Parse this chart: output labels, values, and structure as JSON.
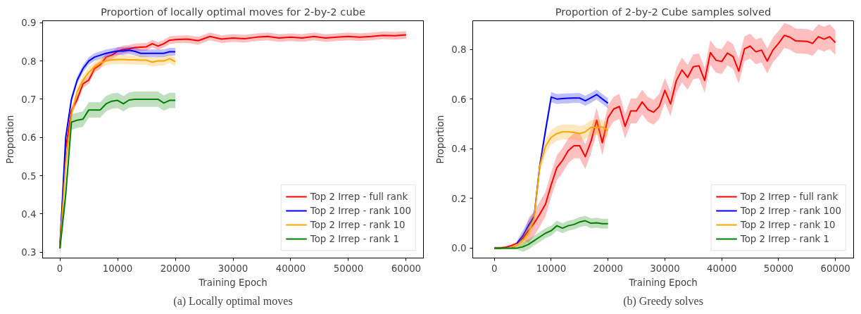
{
  "chart_data": [
    {
      "type": "line",
      "title": "Proportion of locally optimal moves for 2-by-2 cube",
      "xlabel": "Training Epoch",
      "ylabel": "Proportion",
      "annotations": [
        "(a) Locally optimal moves"
      ],
      "xlim": [
        -3000,
        63000
      ],
      "ylim": [
        0.285,
        0.905
      ],
      "xticks": [
        0,
        10000,
        20000,
        30000,
        40000,
        50000,
        60000
      ],
      "yticks": [
        0.3,
        0.4,
        0.5,
        0.6,
        0.7,
        0.8,
        0.9
      ],
      "grid": false,
      "legend": "bottom right",
      "series": [
        {
          "name": "Top 2 Irrep - full rank",
          "color": "#ff0000",
          "x": [
            0,
            1000,
            2000,
            3000,
            4000,
            5000,
            6000,
            7000,
            8000,
            9000,
            10000,
            11000,
            12000,
            13000,
            14000,
            15000,
            16000,
            17000,
            18000,
            19000,
            20000,
            22000,
            24000,
            26000,
            28000,
            30000,
            32000,
            34000,
            36000,
            38000,
            40000,
            42000,
            44000,
            46000,
            48000,
            50000,
            52000,
            54000,
            56000,
            58000,
            60000
          ],
          "values": [
            0.32,
            0.57,
            0.67,
            0.7,
            0.74,
            0.75,
            0.78,
            0.79,
            0.81,
            0.815,
            0.825,
            0.83,
            0.832,
            0.835,
            0.836,
            0.837,
            0.845,
            0.839,
            0.845,
            0.854,
            0.856,
            0.857,
            0.853,
            0.864,
            0.857,
            0.86,
            0.858,
            0.862,
            0.864,
            0.86,
            0.862,
            0.86,
            0.864,
            0.86,
            0.862,
            0.864,
            0.862,
            0.864,
            0.867,
            0.866,
            0.868
          ],
          "lower": [
            0.31,
            0.56,
            0.66,
            0.69,
            0.73,
            0.74,
            0.77,
            0.78,
            0.8,
            0.805,
            0.815,
            0.82,
            0.822,
            0.825,
            0.826,
            0.827,
            0.835,
            0.829,
            0.835,
            0.844,
            0.846,
            0.847,
            0.843,
            0.854,
            0.847,
            0.85,
            0.848,
            0.852,
            0.854,
            0.85,
            0.852,
            0.85,
            0.854,
            0.85,
            0.852,
            0.854,
            0.852,
            0.854,
            0.857,
            0.856,
            0.858
          ],
          "upper": [
            0.33,
            0.58,
            0.68,
            0.71,
            0.75,
            0.76,
            0.79,
            0.8,
            0.82,
            0.825,
            0.835,
            0.84,
            0.842,
            0.845,
            0.846,
            0.847,
            0.855,
            0.849,
            0.855,
            0.864,
            0.866,
            0.867,
            0.863,
            0.874,
            0.867,
            0.87,
            0.868,
            0.872,
            0.874,
            0.87,
            0.872,
            0.87,
            0.874,
            0.87,
            0.872,
            0.874,
            0.872,
            0.874,
            0.877,
            0.876,
            0.878
          ]
        },
        {
          "name": "Top 2 Irrep - rank 100",
          "color": "#0000ff",
          "x": [
            0,
            1000,
            2000,
            3000,
            4000,
            5000,
            6000,
            7000,
            8000,
            9000,
            10000,
            11000,
            12000,
            13000,
            14000,
            15000,
            16000,
            17000,
            18000,
            19000,
            20000
          ],
          "values": [
            0.31,
            0.6,
            0.7,
            0.75,
            0.78,
            0.8,
            0.81,
            0.815,
            0.82,
            0.823,
            0.826,
            0.826,
            0.828,
            0.825,
            0.82,
            0.82,
            0.82,
            0.82,
            0.82,
            0.824,
            0.824
          ],
          "lower": [
            0.3,
            0.59,
            0.69,
            0.74,
            0.77,
            0.79,
            0.8,
            0.805,
            0.81,
            0.813,
            0.816,
            0.816,
            0.818,
            0.815,
            0.81,
            0.81,
            0.81,
            0.81,
            0.81,
            0.814,
            0.814
          ],
          "upper": [
            0.32,
            0.61,
            0.71,
            0.76,
            0.79,
            0.81,
            0.82,
            0.825,
            0.83,
            0.833,
            0.836,
            0.836,
            0.838,
            0.835,
            0.83,
            0.83,
            0.83,
            0.83,
            0.83,
            0.834,
            0.834
          ]
        },
        {
          "name": "Top 2 Irrep - rank 10",
          "color": "#ffa500",
          "x": [
            0,
            1000,
            2000,
            3000,
            4000,
            5000,
            6000,
            7000,
            8000,
            9000,
            10000,
            11000,
            12000,
            13000,
            14000,
            15000,
            16000,
            17000,
            18000,
            19000,
            20000
          ],
          "values": [
            0.31,
            0.53,
            0.66,
            0.72,
            0.75,
            0.77,
            0.785,
            0.795,
            0.8,
            0.803,
            0.804,
            0.804,
            0.803,
            0.803,
            0.802,
            0.802,
            0.797,
            0.8,
            0.8,
            0.806,
            0.798
          ],
          "lower": [
            0.298,
            0.518,
            0.648,
            0.708,
            0.738,
            0.758,
            0.773,
            0.783,
            0.788,
            0.791,
            0.792,
            0.792,
            0.791,
            0.791,
            0.79,
            0.79,
            0.785,
            0.788,
            0.788,
            0.794,
            0.786
          ],
          "upper": [
            0.322,
            0.542,
            0.672,
            0.732,
            0.762,
            0.782,
            0.797,
            0.807,
            0.812,
            0.815,
            0.816,
            0.816,
            0.815,
            0.815,
            0.814,
            0.814,
            0.809,
            0.812,
            0.812,
            0.818,
            0.81
          ]
        },
        {
          "name": "Top 2 Irrep - rank 1",
          "color": "#008000",
          "x": [
            0,
            1000,
            2000,
            3000,
            4000,
            5000,
            6000,
            7000,
            8000,
            9000,
            10000,
            11000,
            12000,
            13000,
            14000,
            15000,
            16000,
            17000,
            18000,
            19000,
            20000
          ],
          "values": [
            0.31,
            0.45,
            0.64,
            0.645,
            0.648,
            0.672,
            0.672,
            0.672,
            0.688,
            0.695,
            0.697,
            0.688,
            0.698,
            0.7,
            0.7,
            0.7,
            0.7,
            0.7,
            0.69,
            0.697,
            0.697
          ],
          "lower": [
            0.29,
            0.43,
            0.62,
            0.625,
            0.628,
            0.652,
            0.652,
            0.652,
            0.668,
            0.675,
            0.677,
            0.668,
            0.678,
            0.68,
            0.68,
            0.68,
            0.68,
            0.68,
            0.67,
            0.677,
            0.677
          ],
          "upper": [
            0.33,
            0.47,
            0.66,
            0.665,
            0.668,
            0.692,
            0.692,
            0.692,
            0.708,
            0.715,
            0.717,
            0.708,
            0.718,
            0.72,
            0.72,
            0.72,
            0.72,
            0.72,
            0.71,
            0.717,
            0.717
          ]
        }
      ]
    },
    {
      "type": "line",
      "title": "Proportion of 2-by-2 Cube samples solved",
      "xlabel": "Training Epoch",
      "ylabel": "Proportion",
      "annotations": [
        "(b) Greedy solves"
      ],
      "xlim": [
        -3800,
        63200
      ],
      "ylim": [
        -0.04,
        0.915
      ],
      "xticks": [
        0,
        10000,
        20000,
        30000,
        40000,
        50000,
        60000
      ],
      "yticks": [
        {
          "value": 0,
          "label": "0.0"
        },
        0.2,
        0.4,
        0.6,
        0.8
      ],
      "grid": false,
      "legend": "bottom right",
      "series": [
        {
          "name": "Top 2 Irrep - full rank",
          "color": "#ff0000",
          "x": [
            0,
            1000,
            2000,
            3000,
            4000,
            5000,
            6000,
            7000,
            8000,
            9000,
            10000,
            11000,
            12000,
            13000,
            14000,
            15000,
            16000,
            17000,
            18000,
            19000,
            20000,
            21000,
            22000,
            23000,
            24000,
            25000,
            26000,
            27000,
            28000,
            29000,
            30000,
            31000,
            32000,
            33000,
            34000,
            35000,
            36000,
            37000,
            38000,
            39000,
            40000,
            41000,
            42000,
            43000,
            44000,
            45000,
            46000,
            47000,
            48000,
            49000,
            50000,
            51000,
            52000,
            53000,
            55000,
            56000,
            57000,
            58000,
            59000,
            60000
          ],
          "values": [
            0,
            0,
            0.003,
            0.01,
            0.02,
            0.04,
            0.07,
            0.1,
            0.137,
            0.177,
            0.255,
            0.324,
            0.353,
            0.392,
            0.412,
            0.412,
            0.368,
            0.43,
            0.515,
            0.424,
            0.525,
            0.56,
            0.57,
            0.49,
            0.552,
            0.552,
            0.588,
            0.558,
            0.547,
            0.57,
            0.635,
            0.58,
            0.673,
            0.717,
            0.687,
            0.73,
            0.734,
            0.675,
            0.787,
            0.756,
            0.751,
            0.785,
            0.771,
            0.712,
            0.802,
            0.813,
            0.79,
            0.797,
            0.753,
            0.797,
            0.824,
            0.856,
            0.849,
            0.834,
            0.832,
            0.824,
            0.851,
            0.841,
            0.851,
            0.827
          ],
          "lower": [
            -0.005,
            -0.005,
            -0.002,
            0.005,
            0.015,
            0.035,
            0.02,
            0.05,
            0.087,
            0.127,
            0.205,
            0.274,
            0.303,
            0.342,
            0.362,
            0.362,
            0.318,
            0.38,
            0.465,
            0.374,
            0.475,
            0.51,
            0.52,
            0.44,
            0.502,
            0.502,
            0.538,
            0.508,
            0.497,
            0.52,
            0.585,
            0.53,
            0.623,
            0.667,
            0.637,
            0.68,
            0.684,
            0.625,
            0.737,
            0.706,
            0.701,
            0.735,
            0.721,
            0.662,
            0.752,
            0.763,
            0.74,
            0.747,
            0.703,
            0.747,
            0.774,
            0.806,
            0.799,
            0.784,
            0.782,
            0.774,
            0.801,
            0.791,
            0.801,
            0.777
          ],
          "upper": [
            0.005,
            0.005,
            0.008,
            0.015,
            0.025,
            0.045,
            0.12,
            0.15,
            0.187,
            0.227,
            0.305,
            0.374,
            0.403,
            0.442,
            0.462,
            0.462,
            0.418,
            0.48,
            0.565,
            0.474,
            0.575,
            0.61,
            0.62,
            0.54,
            0.602,
            0.602,
            0.638,
            0.608,
            0.597,
            0.62,
            0.685,
            0.63,
            0.723,
            0.767,
            0.737,
            0.78,
            0.784,
            0.725,
            0.837,
            0.806,
            0.801,
            0.835,
            0.821,
            0.762,
            0.852,
            0.863,
            0.84,
            0.847,
            0.803,
            0.847,
            0.874,
            0.906,
            0.899,
            0.884,
            0.882,
            0.874,
            0.901,
            0.891,
            0.901,
            0.877
          ]
        },
        {
          "name": "Top 2 Irrep - rank 100",
          "color": "#0000ff",
          "x": [
            4000,
            5000,
            6000,
            7000,
            8000,
            9000,
            10000,
            11000,
            12000,
            13000,
            14000,
            15000,
            16000,
            17000,
            18000,
            19000,
            20000
          ],
          "values": [
            0.02,
            0.05,
            0.09,
            0.127,
            0.333,
            0.473,
            0.608,
            0.6,
            0.602,
            0.603,
            0.604,
            0.604,
            0.593,
            0.605,
            0.618,
            0.6,
            0.583
          ],
          "lower": [
            0.01,
            0.03,
            0.07,
            0.107,
            0.313,
            0.453,
            0.588,
            0.58,
            0.582,
            0.583,
            0.584,
            0.584,
            0.573,
            0.585,
            0.598,
            0.58,
            0.563
          ],
          "upper": [
            0.03,
            0.07,
            0.11,
            0.147,
            0.353,
            0.493,
            0.628,
            0.62,
            0.622,
            0.623,
            0.624,
            0.624,
            0.613,
            0.625,
            0.638,
            0.62,
            0.603
          ]
        },
        {
          "name": "Top 2 Irrep - rank 10",
          "color": "#ffa500",
          "x": [
            3000,
            4000,
            5000,
            6000,
            7000,
            8000,
            9000,
            10000,
            11000,
            12000,
            13000,
            14000,
            15000,
            16000,
            17000,
            18000,
            19000,
            20000
          ],
          "values": [
            0.003,
            0.01,
            0.03,
            0.06,
            0.12,
            0.33,
            0.41,
            0.446,
            0.461,
            0.468,
            0.468,
            0.466,
            0.461,
            0.468,
            0.486,
            0.486,
            0.488,
            0.473
          ],
          "lower": [
            -0.002,
            0.005,
            0,
            0.03,
            0.09,
            0.3,
            0.38,
            0.416,
            0.431,
            0.438,
            0.438,
            0.436,
            0.431,
            0.438,
            0.456,
            0.456,
            0.458,
            0.443
          ],
          "upper": [
            0.008,
            0.015,
            0.06,
            0.09,
            0.15,
            0.36,
            0.44,
            0.476,
            0.491,
            0.498,
            0.498,
            0.496,
            0.491,
            0.498,
            0.516,
            0.516,
            0.518,
            0.503
          ]
        },
        {
          "name": "Top 2 Irrep - rank 1",
          "color": "#008000",
          "x": [
            0,
            1000,
            2000,
            3000,
            4000,
            5000,
            6000,
            7000,
            8000,
            9000,
            10000,
            11000,
            12000,
            13000,
            14000,
            15000,
            16000,
            17000,
            18000,
            19000,
            20000
          ],
          "values": [
            0,
            0,
            0,
            0,
            0,
            0.005,
            0.015,
            0.03,
            0.045,
            0.06,
            0.07,
            0.09,
            0.08,
            0.09,
            0.095,
            0.105,
            0.11,
            0.1,
            0.102,
            0.098,
            0.098
          ],
          "lower": [
            -0.005,
            -0.005,
            -0.005,
            -0.005,
            -0.005,
            -0.015,
            -0.005,
            0.01,
            0.025,
            0.04,
            0.05,
            0.07,
            0.06,
            0.07,
            0.075,
            0.085,
            0.09,
            0.08,
            0.082,
            0.078,
            0.078
          ],
          "upper": [
            0.005,
            0.005,
            0.005,
            0.005,
            0.005,
            0.025,
            0.035,
            0.05,
            0.065,
            0.08,
            0.09,
            0.11,
            0.1,
            0.11,
            0.115,
            0.125,
            0.13,
            0.12,
            0.122,
            0.118,
            0.118
          ]
        }
      ]
    }
  ]
}
